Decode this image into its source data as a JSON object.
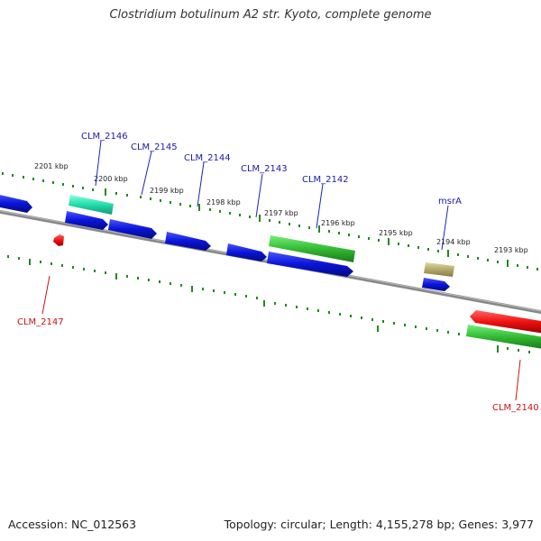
{
  "title": "Clostridium botulinum A2 str. Kyoto, complete genome",
  "accession": "Accession: NC_012563",
  "summary": "Topology: circular; Length: 4,155,278 bp; Genes: 3,977",
  "colors": {
    "blue_gene": "#0a14d8",
    "green_gene": "#33bb33",
    "teal_gene": "#22ddaa",
    "olive_gene": "#b3a86a",
    "red_gene": "#ee1111",
    "blue_label": "#1a1aaa",
    "red_label": "#cc1111",
    "axis_dots": "#228822",
    "backbone": "#777777"
  },
  "scale": {
    "kbp_ticks": [
      "2201 kbp",
      "2200 kbp",
      "2199 kbp",
      "2198 kbp",
      "2197 kbp",
      "2196 kbp",
      "2195 kbp",
      "2194 kbp",
      "2193 kbp"
    ]
  },
  "genes": {
    "forward_labels": [
      "CLM_2146",
      "CLM_2145",
      "CLM_2144",
      "CLM_2143",
      "CLM_2142",
      "msrA"
    ],
    "reverse_labels": [
      "CLM_2147",
      "CLM_2140"
    ]
  }
}
